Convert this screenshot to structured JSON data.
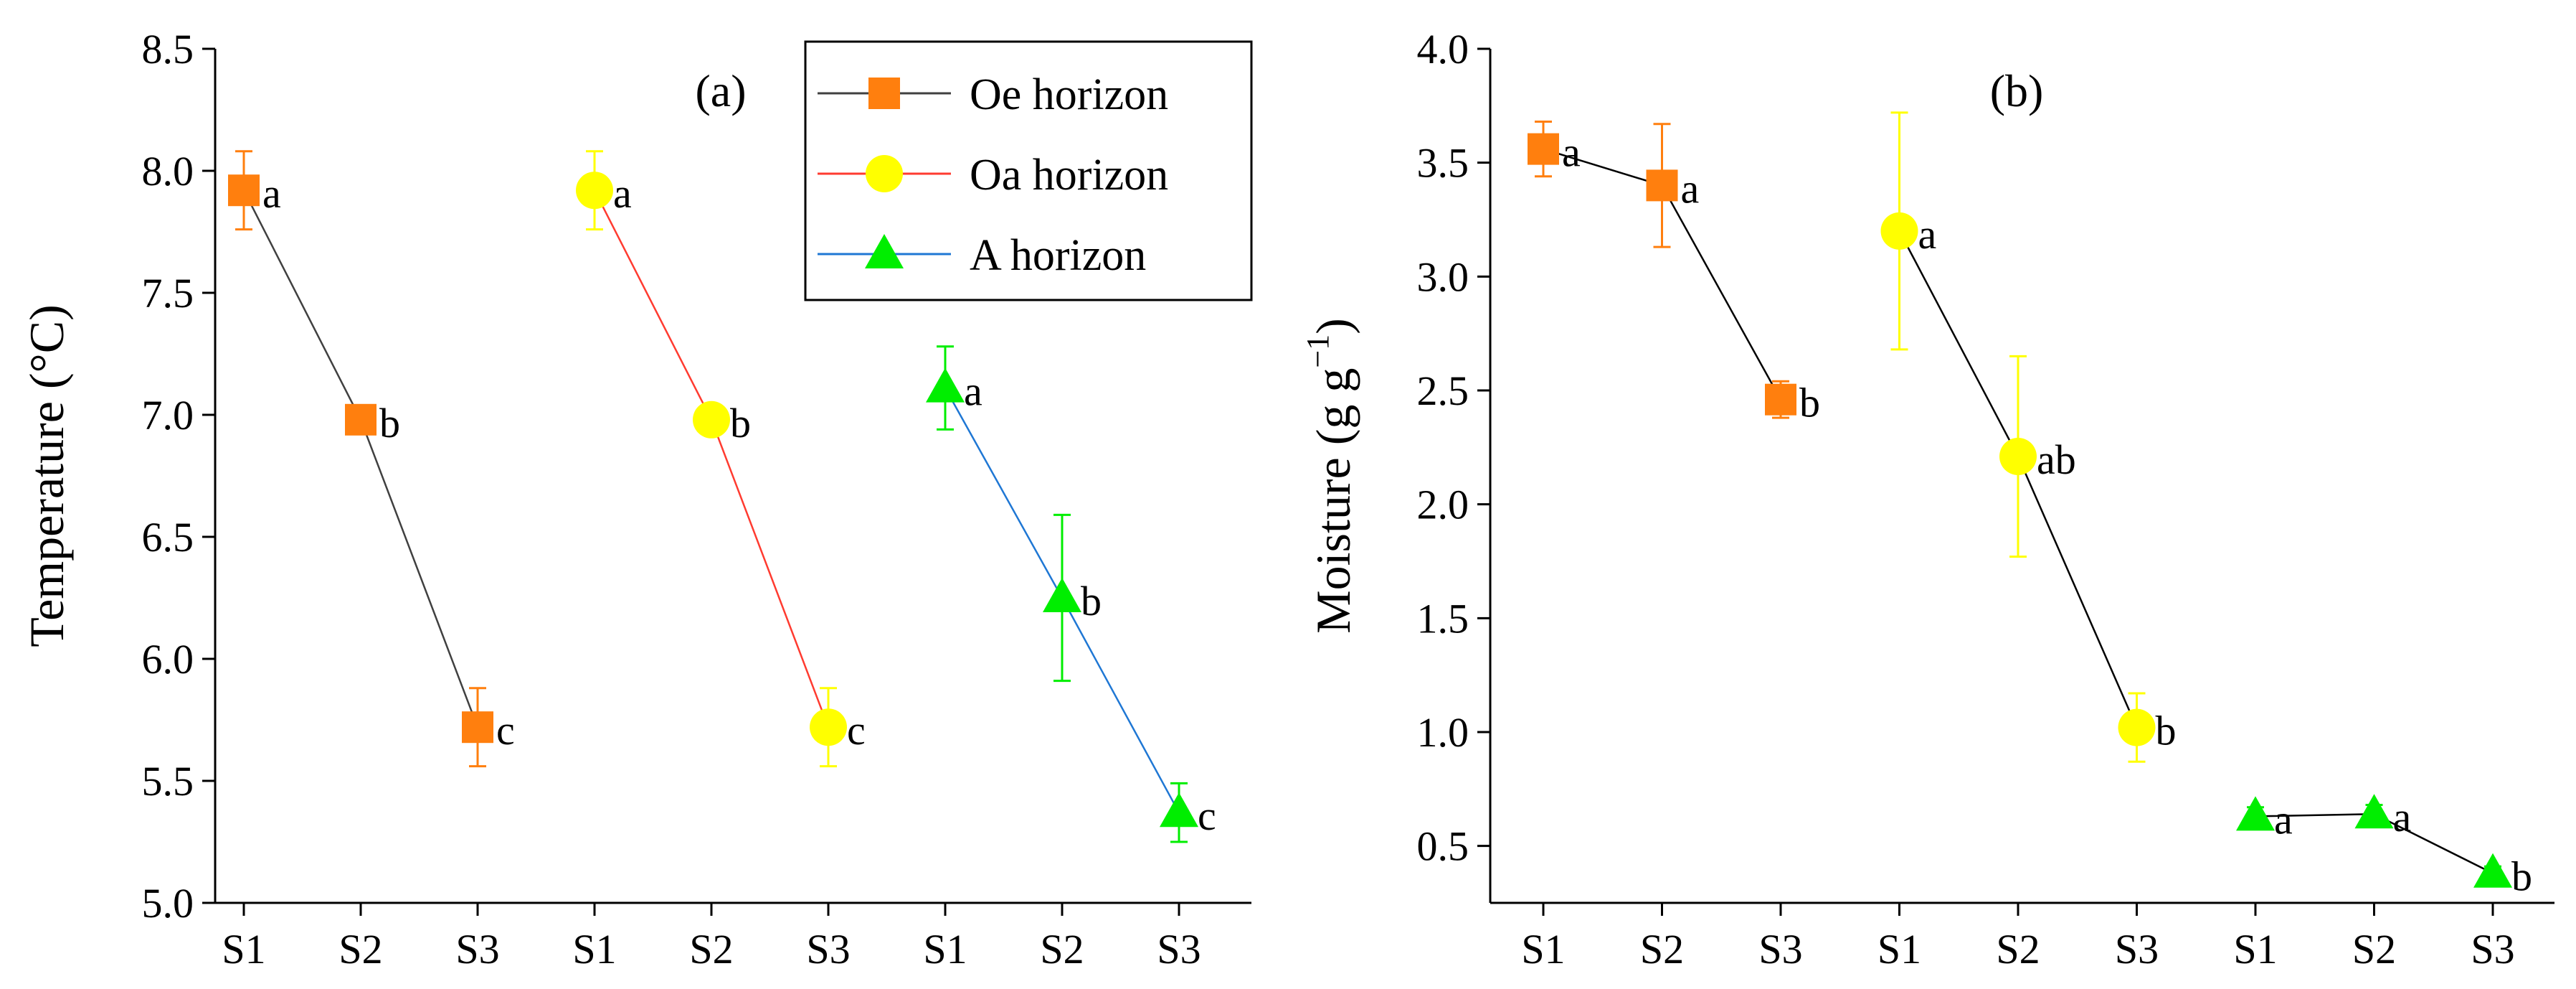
{
  "legend": {
    "entries": [
      {
        "label": "Oe horizon",
        "marker": "square",
        "marker_color": "#ff7f0e",
        "line_color": "#404040"
      },
      {
        "label": "Oa horizon",
        "marker": "circle",
        "marker_color": "#ffff00",
        "line_color": "#ff3b30"
      },
      {
        "label": "A horizon",
        "marker": "triangle",
        "marker_color": "#00ee00",
        "line_color": "#1f77d4"
      }
    ]
  },
  "chart_data": [
    {
      "type": "line",
      "panel_label": "(a)",
      "ylabel": "Temperature (°C)",
      "ylim": [
        5.0,
        8.5
      ],
      "yticks": [
        5.0,
        5.5,
        6.0,
        6.5,
        7.0,
        7.5,
        8.0,
        8.5
      ],
      "yticklabels": [
        "5.0",
        "5.5",
        "6.0",
        "6.5",
        "7.0",
        "7.5",
        "8.0",
        "8.5"
      ],
      "xticklabels": [
        "S1",
        "S2",
        "S3",
        "S1",
        "S2",
        "S3",
        "S1",
        "S2",
        "S3"
      ],
      "series": [
        {
          "name": "Oe horizon",
          "x": [
            1,
            2,
            3
          ],
          "values": [
            7.92,
            6.98,
            5.72
          ],
          "errors": [
            0.16,
            0.03,
            0.16
          ],
          "letters": [
            "a",
            "b",
            "c"
          ]
        },
        {
          "name": "Oa horizon",
          "x": [
            4,
            5,
            6
          ],
          "values": [
            7.92,
            6.98,
            5.72
          ],
          "errors": [
            0.16,
            0.03,
            0.16
          ],
          "letters": [
            "a",
            "b",
            "c"
          ]
        },
        {
          "name": "A horizon",
          "x": [
            7,
            8,
            9
          ],
          "values": [
            7.11,
            6.25,
            5.37
          ],
          "errors": [
            0.17,
            0.34,
            0.12
          ],
          "letters": [
            "a",
            "b",
            "c"
          ]
        }
      ]
    },
    {
      "type": "line",
      "panel_label": "(b)",
      "ylabel": "Moisture (g g",
      "ylabel_superscript": "−1",
      "ylabel_close": ")",
      "ylim": [
        0.25,
        4.0
      ],
      "yticks": [
        0.5,
        1.0,
        1.5,
        2.0,
        2.5,
        3.0,
        3.5,
        4.0
      ],
      "yticklabels": [
        "0.5",
        "1.0",
        "1.5",
        "2.0",
        "2.5",
        "3.0",
        "3.5",
        "4.0"
      ],
      "xticklabels": [
        "S1",
        "S2",
        "S3",
        "S1",
        "S2",
        "S3",
        "S1",
        "S2",
        "S3"
      ],
      "series": [
        {
          "name": "Oe horizon",
          "x": [
            1,
            2,
            3
          ],
          "values": [
            3.56,
            3.4,
            2.46
          ],
          "errors": [
            0.12,
            0.27,
            0.08
          ],
          "letters": [
            "a",
            "a",
            "b"
          ]
        },
        {
          "name": "Oa horizon",
          "x": [
            4,
            5,
            6
          ],
          "values": [
            3.2,
            2.21,
            1.02
          ],
          "errors": [
            0.52,
            0.44,
            0.15
          ],
          "letters": [
            "a",
            "ab",
            "b"
          ]
        },
        {
          "name": "A horizon",
          "x": [
            7,
            8,
            9
          ],
          "values": [
            0.63,
            0.64,
            0.38
          ],
          "errors": [
            0.04,
            0.04,
            0.03
          ],
          "letters": [
            "a",
            "a",
            "b"
          ]
        }
      ]
    }
  ]
}
